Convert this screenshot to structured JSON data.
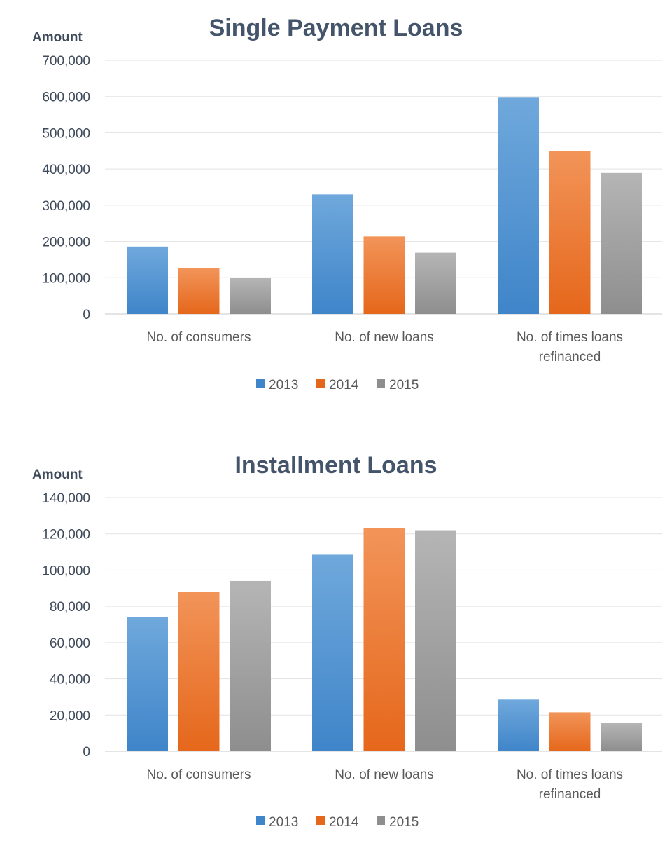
{
  "colors": {
    "2013": [
      "#6fa8dc",
      "#3f85c9"
    ],
    "2014": [
      "#f29459",
      "#e5671b"
    ],
    "2015": [
      "#b5b5b5",
      "#8e8e8e"
    ]
  },
  "chart_data": [
    {
      "type": "bar",
      "title": "Single Payment Loans",
      "ylabel": "Amount",
      "xlabel": "",
      "ylim": [
        0,
        700000
      ],
      "yticks": [
        "0",
        "100,000",
        "200,000",
        "300,000",
        "400,000",
        "500,000",
        "600,000",
        "700,000"
      ],
      "tick_step": 100000,
      "categories": [
        [
          "No. of consumers"
        ],
        [
          "No. of new loans"
        ],
        [
          "No. of times loans",
          "refinanced"
        ]
      ],
      "series": [
        {
          "name": "2013",
          "values": [
            186000,
            330000,
            597000
          ]
        },
        {
          "name": "2014",
          "values": [
            126000,
            214000,
            450000
          ]
        },
        {
          "name": "2015",
          "values": [
            99000,
            169000,
            389000
          ]
        }
      ],
      "legend": "bottom",
      "grid": true
    },
    {
      "type": "bar",
      "title": "Installment Loans",
      "ylabel": "Amount",
      "xlabel": "",
      "ylim": [
        0,
        140000
      ],
      "yticks": [
        "0",
        "20,000",
        "40,000",
        "60,000",
        "80,000",
        "100,000",
        "120,000",
        "140,000"
      ],
      "tick_step": 20000,
      "categories": [
        [
          "No. of consumers"
        ],
        [
          "No. of new loans"
        ],
        [
          "No. of times loans",
          "refinanced"
        ]
      ],
      "series": [
        {
          "name": "2013",
          "values": [
            74000,
            108500,
            28500
          ]
        },
        {
          "name": "2014",
          "values": [
            88000,
            123000,
            21500
          ]
        },
        {
          "name": "2015",
          "values": [
            94000,
            122000,
            15500
          ]
        }
      ],
      "legend": "bottom",
      "grid": true
    }
  ]
}
